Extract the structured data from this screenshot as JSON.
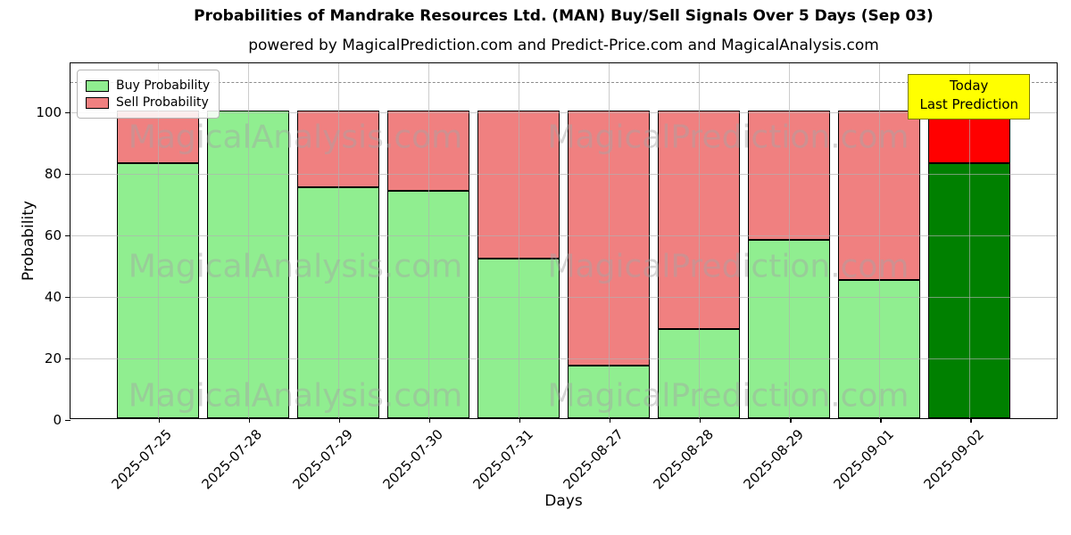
{
  "title": "Probabilities of Mandrake Resources Ltd. (MAN) Buy/Sell Signals Over 5 Days (Sep 03)",
  "subtitle": "powered by MagicalPrediction.com and Predict-Price.com and MagicalAnalysis.com",
  "annotation": {
    "line1": "Today",
    "line2": "Last Prediction"
  },
  "watermarks": {
    "left": "MagicalAnalysis.com",
    "right": "MagicalPrediction.com"
  },
  "legend": {
    "items": [
      {
        "label": "Buy Probability",
        "color": "#90ee90"
      },
      {
        "label": "Sell Probability",
        "color": "#f08080"
      }
    ]
  },
  "chart_data": {
    "type": "bar",
    "stacked": true,
    "title": "Probabilities of Mandrake Resources Ltd. (MAN) Buy/Sell Signals Over 5 Days (Sep 03)",
    "xlabel": "Days",
    "ylabel": "Probability",
    "categories": [
      "2025-07-25",
      "2025-07-28",
      "2025-07-29",
      "2025-07-30",
      "2025-07-31",
      "2025-08-27",
      "2025-08-28",
      "2025-08-29",
      "2025-09-01",
      "2025-09-02"
    ],
    "series": [
      {
        "name": "Buy Probability",
        "color": "#90ee90",
        "last_bar_color": "#008000",
        "values": [
          83,
          100,
          75,
          74,
          52,
          17,
          29,
          58,
          45,
          83
        ]
      },
      {
        "name": "Sell Probability",
        "color": "#f08080",
        "last_bar_color": "#ff0000",
        "values": [
          17,
          0,
          25,
          26,
          48,
          83,
          71,
          42,
          55,
          17
        ]
      }
    ],
    "ylim": [
      0,
      116
    ],
    "yticks": [
      0,
      20,
      40,
      60,
      80,
      100
    ],
    "dashed_line_y": 110,
    "grid": true,
    "legend_position": "upper left",
    "bar_edge_color": "#000000"
  }
}
